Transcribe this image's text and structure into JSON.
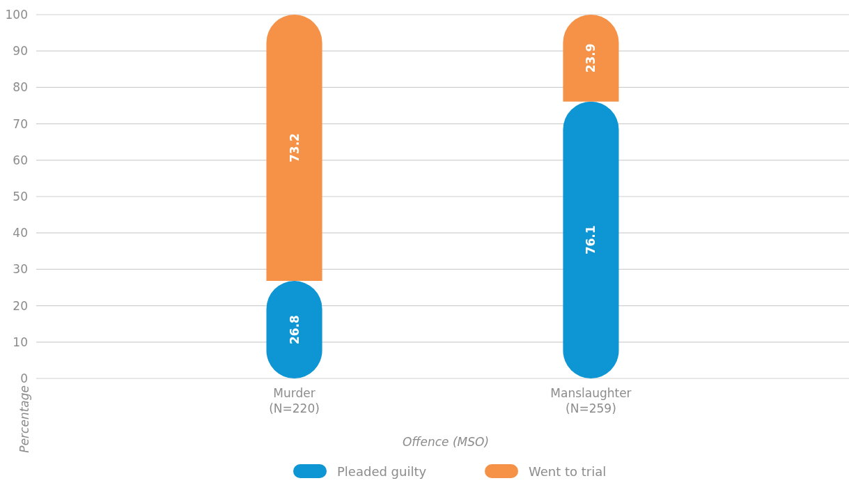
{
  "chart_data": {
    "type": "bar",
    "stacked": true,
    "categories": [
      "Murder\n(N=220)",
      "Manslaughter\n(N=259)"
    ],
    "series": [
      {
        "name": "Pleaded guilty",
        "color": "#0e95d3",
        "values": [
          26.8,
          76.1
        ]
      },
      {
        "name": "Went to trial",
        "color": "#f59248",
        "values": [
          73.2,
          23.9
        ]
      }
    ],
    "ylim": [
      0,
      100
    ],
    "yticks": [
      0,
      10,
      20,
      30,
      40,
      50,
      60,
      70,
      80,
      90,
      100
    ],
    "xlabel": "Offence (MSO)",
    "ylabel": "Percentage",
    "grid": "y",
    "legend": "bottom",
    "data_labels": true
  }
}
